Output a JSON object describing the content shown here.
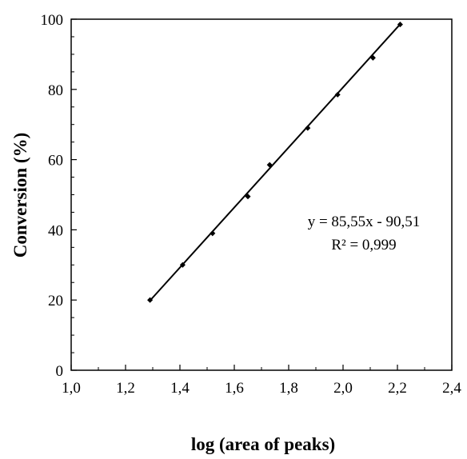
{
  "chart_data": {
    "type": "scatter",
    "title": "",
    "xlabel": "log (area of peaks)",
    "ylabel": "Conversion (%)",
    "xlim": [
      1.0,
      2.4
    ],
    "ylim": [
      0,
      100
    ],
    "x_ticks": [
      "1,0",
      "1,2",
      "1,4",
      "1,6",
      "1,8",
      "2,0",
      "2,2",
      "2,4"
    ],
    "y_ticks": [
      "0",
      "20",
      "40",
      "60",
      "80",
      "100"
    ],
    "grid": false,
    "legend": "none",
    "series": [
      {
        "x": [
          1.29,
          1.41,
          1.52,
          1.65,
          1.73,
          1.87,
          1.98,
          2.11,
          2.21
        ],
        "y": [
          20,
          30,
          39,
          49.5,
          58.5,
          69,
          78.5,
          89,
          98.5
        ]
      }
    ],
    "trendline": {
      "slope": 85.55,
      "intercept": -90.51,
      "x_range": [
        1.29,
        2.21
      ]
    },
    "annotations": [
      "y = 85,55x - 90,51",
      "R² = 0,999"
    ],
    "colors": {
      "axis": "#000000",
      "line": "#000000",
      "marker": "#000000"
    }
  }
}
